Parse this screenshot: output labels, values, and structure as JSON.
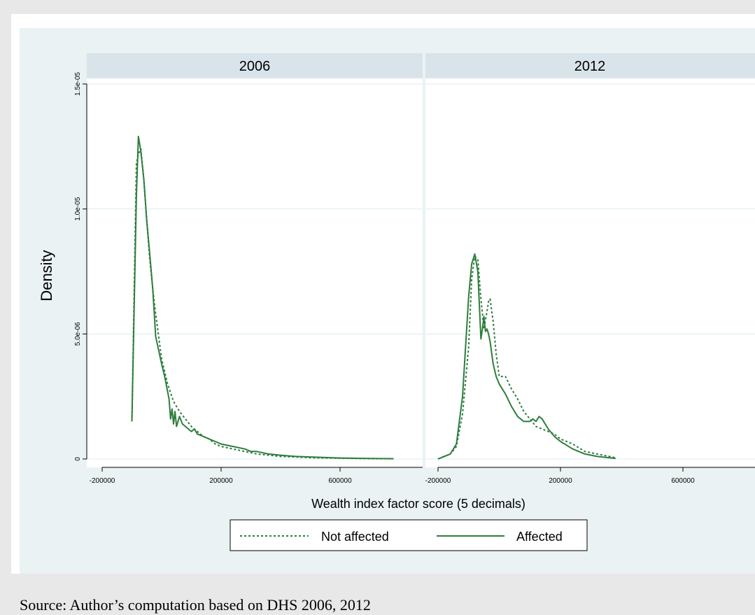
{
  "source_note": "Source: Author’s computation based on DHS 2006, 2012",
  "chart_data": {
    "type": "line",
    "ylabel": "Density",
    "xlabel": "Wealth index factor score (5 decimals)",
    "xlim": [
      -200000,
      850000
    ],
    "ylim": [
      0,
      1.5e-05
    ],
    "x_ticks": [
      -200000,
      200000,
      600000
    ],
    "x_tick_labels": [
      "-200000",
      "200000",
      "600000"
    ],
    "y_ticks": [
      0,
      5e-06,
      1e-05,
      1.5e-05
    ],
    "y_tick_labels": [
      "0",
      "5.0e-06",
      "1.0e-05",
      "1.5e-05"
    ],
    "grid": true,
    "legend": {
      "position": "bottom",
      "entries": [
        "Not affected",
        "Affected"
      ]
    },
    "colors": {
      "line": "#2e7d3e",
      "strip_bg": "#d9e4ea",
      "grid": "#dcebf0",
      "plot_bg": "#eaf2f3",
      "panel_bg": "#ffffff"
    },
    "panels": [
      {
        "title": "2006",
        "series": [
          {
            "name": "Not affected",
            "style": "dotted",
            "x": [
              -100000,
              -85000,
              -78000,
              -70000,
              -60000,
              -50000,
              -40000,
              -30000,
              -20000,
              0,
              20000,
              40000,
              60000,
              80000,
              100000,
              120000,
              140000,
              160000,
              180000,
              200000,
              240000,
              280000,
              320000,
              360000,
              400000,
              450000,
              500000,
              600000,
              700000,
              780000
            ],
            "y": [
              1.5e-06,
              1.18e-05,
              1.22e-05,
              1.24e-05,
              1.12e-05,
              9.5e-06,
              8e-06,
              6.8e-06,
              5.8e-06,
              4e-06,
              3e-06,
              2.3e-06,
              1.9e-06,
              1.6e-06,
              1.3e-06,
              1.1e-06,
              9e-07,
              8e-07,
              6e-07,
              5e-07,
              4e-07,
              3e-07,
              2e-07,
              1.5e-07,
              1e-07,
              8e-08,
              5e-08,
              3e-08,
              1e-08,
              1e-08
            ]
          },
          {
            "name": "Affected",
            "style": "solid",
            "x": [
              -100000,
              -85000,
              -78000,
              -70000,
              -60000,
              -50000,
              -40000,
              -30000,
              -20000,
              0,
              10000,
              20000,
              25000,
              30000,
              35000,
              40000,
              45000,
              50000,
              60000,
              70000,
              80000,
              90000,
              100000,
              110000,
              120000,
              140000,
              160000,
              180000,
              200000,
              240000,
              280000,
              300000,
              320000,
              360000,
              400000,
              450000,
              500000,
              600000,
              700000,
              780000
            ],
            "y": [
              1.5e-06,
              1.05e-05,
              1.29e-05,
              1.23e-05,
              1.12e-05,
              9.5e-06,
              8.2e-06,
              6.8e-06,
              4.9e-06,
              3.8e-06,
              3.3e-06,
              2.7e-06,
              2.4e-06,
              1.6e-06,
              2e-06,
              1.4e-06,
              1.9e-06,
              1.3e-06,
              1.7e-06,
              1.4e-06,
              1.3e-06,
              1.2e-06,
              1.1e-06,
              1.2e-06,
              1e-06,
              9e-07,
              8e-07,
              7e-07,
              6e-07,
              5e-07,
              4e-07,
              3e-07,
              3e-07,
              2e-07,
              1.5e-07,
              1e-07,
              8e-08,
              4e-08,
              2e-08,
              1e-08
            ]
          }
        ]
      },
      {
        "title": "2012",
        "series": [
          {
            "name": "Not affected",
            "style": "dotted",
            "x": [
              -200000,
              -180000,
              -160000,
              -140000,
              -120000,
              -100000,
              -90000,
              -80000,
              -70000,
              -60000,
              -50000,
              -40000,
              -35000,
              -30000,
              -20000,
              -10000,
              0,
              20000,
              40000,
              60000,
              80000,
              100000,
              120000,
              140000,
              160000,
              180000,
              200000,
              240000,
              280000,
              320000,
              360000,
              380000
            ],
            "y": [
              0,
              1e-07,
              2e-07,
              5e-07,
              1.8e-06,
              4.5e-06,
              7.2e-06,
              8.1e-06,
              8e-06,
              6.4e-06,
              5.2e-06,
              5.9e-06,
              6.3e-06,
              6.4e-06,
              5.5e-06,
              4.2e-06,
              3.3e-06,
              3.3e-06,
              2.8e-06,
              2.4e-06,
              1.9e-06,
              1.6e-06,
              1.3e-06,
              1.2e-06,
              1.1e-06,
              1e-06,
              8e-07,
              6e-07,
              3e-07,
              2e-07,
              1e-07,
              5e-08
            ]
          },
          {
            "name": "Affected",
            "style": "solid",
            "x": [
              -200000,
              -180000,
              -160000,
              -140000,
              -120000,
              -100000,
              -90000,
              -80000,
              -70000,
              -60000,
              -55000,
              -50000,
              -45000,
              -40000,
              -35000,
              -30000,
              -20000,
              -10000,
              0,
              20000,
              40000,
              60000,
              80000,
              100000,
              110000,
              120000,
              130000,
              140000,
              160000,
              180000,
              200000,
              240000,
              280000,
              320000,
              360000,
              380000
            ],
            "y": [
              0,
              1e-07,
              2e-07,
              6e-07,
              2.5e-06,
              6.5e-06,
              7.8e-06,
              8.2e-06,
              7.5e-06,
              4.8e-06,
              5.2e-06,
              5.7e-06,
              5.1e-06,
              5.2e-06,
              5e-06,
              4.7e-06,
              3.8e-06,
              3.3e-06,
              3e-06,
              2.6e-06,
              2.1e-06,
              1.7e-06,
              1.5e-06,
              1.5e-06,
              1.6e-06,
              1.5e-06,
              1.7e-06,
              1.6e-06,
              1.2e-06,
              9e-07,
              7e-07,
              4e-07,
              2e-07,
              1e-07,
              5e-08,
              2e-08
            ]
          }
        ]
      }
    ]
  }
}
